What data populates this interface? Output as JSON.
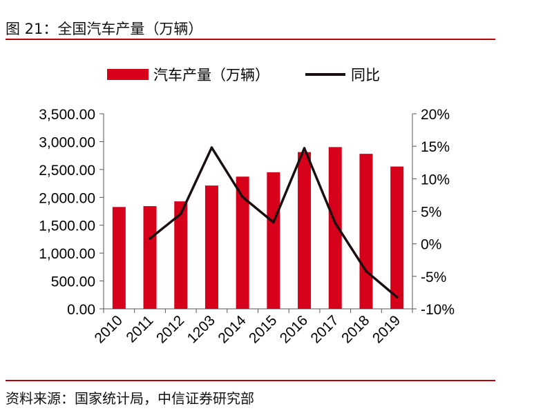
{
  "header": {
    "title": "图 21：全国汽车产量（万辆）"
  },
  "footer": {
    "source": "资料来源：国家统计局，中信证券研究部"
  },
  "colors": {
    "bar": "#d7001b",
    "line": "#1a0f0f",
    "rule": "#c00000"
  },
  "chart_data": {
    "type": "bar+line",
    "categories": [
      "2010",
      "2011",
      "2012",
      "1203",
      "2014",
      "2015",
      "2016",
      "2017",
      "2018",
      "2019"
    ],
    "series": [
      {
        "name": "汽车产量（万辆）",
        "type": "bar",
        "axis": "left",
        "values": [
          1827,
          1842,
          1928,
          2212,
          2372,
          2450,
          2812,
          2902,
          2781,
          2553
        ]
      },
      {
        "name": "同比",
        "type": "line",
        "axis": "right",
        "values": [
          null,
          0.8,
          4.6,
          14.8,
          7.2,
          3.3,
          14.7,
          3.2,
          -4.2,
          -8.2
        ]
      }
    ],
    "y_left": {
      "min": 0,
      "max": 3500,
      "ticks": [
        "0.00",
        "500.00",
        "1,000.00",
        "1,500.00",
        "2,000.00",
        "2,500.00",
        "3,000.00",
        "3,500.00"
      ]
    },
    "y_right": {
      "min": -10,
      "max": 20,
      "ticks": [
        "-10%",
        "-5%",
        "0%",
        "5%",
        "10%",
        "15%",
        "20%"
      ]
    },
    "legend": {
      "position": "top"
    },
    "grid": false
  }
}
